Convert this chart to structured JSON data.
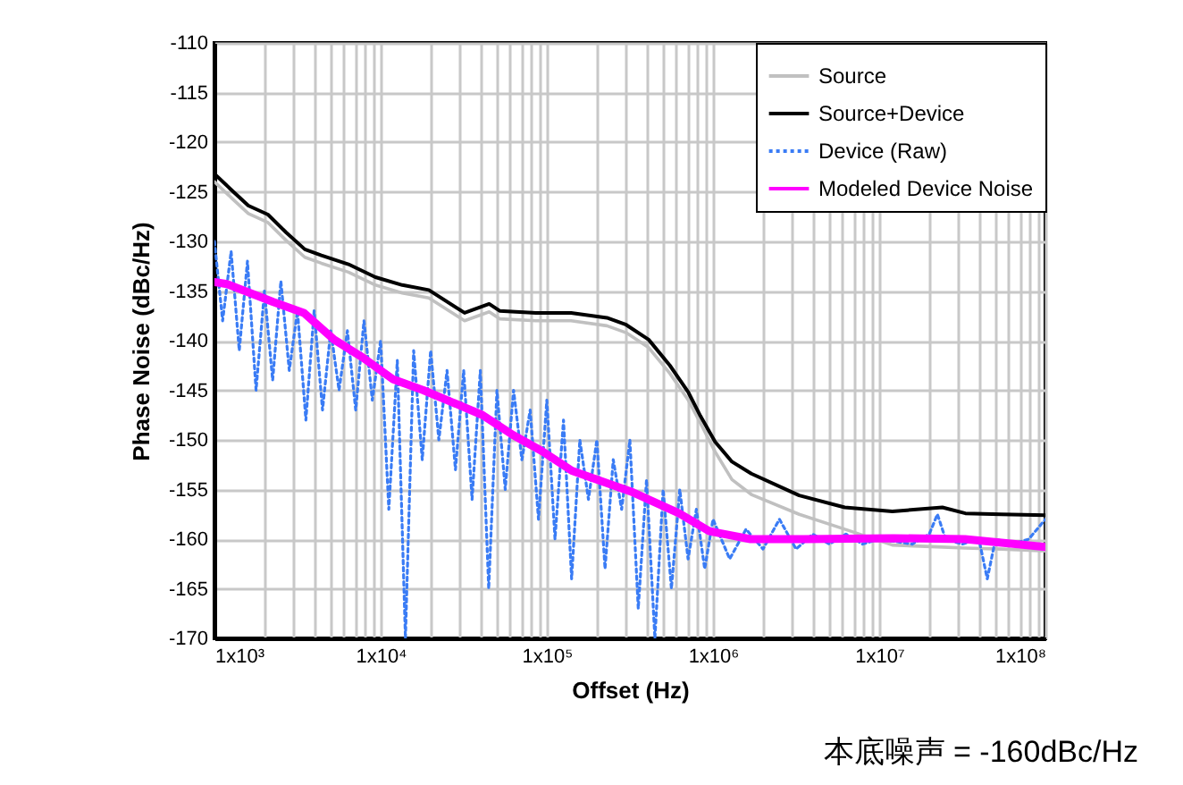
{
  "chart_data": {
    "type": "line",
    "xlabel": "Offset (Hz)",
    "ylabel": "Phase Noise (dBc/Hz)",
    "log": "x",
    "grid": true,
    "legend": "top right",
    "xlim": [
      1000,
      100000000
    ],
    "ylim": [
      -170,
      -110
    ],
    "xticks": [
      {
        "value": 1000,
        "label": "1x10³"
      },
      {
        "value": 2000,
        "label": null
      },
      {
        "value": 3000,
        "label": null
      },
      {
        "value": 4000,
        "label": null
      },
      {
        "value": 5000,
        "label": null
      },
      {
        "value": 6000,
        "label": null
      },
      {
        "value": 7000,
        "label": null
      },
      {
        "value": 8000,
        "label": null
      },
      {
        "value": 9000,
        "label": null
      },
      {
        "value": 10000,
        "label": "1x10⁴"
      },
      {
        "value": 20000,
        "label": null
      },
      {
        "value": 30000,
        "label": null
      },
      {
        "value": 40000,
        "label": null
      },
      {
        "value": 50000,
        "label": null
      },
      {
        "value": 60000,
        "label": null
      },
      {
        "value": 70000,
        "label": null
      },
      {
        "value": 80000,
        "label": null
      },
      {
        "value": 90000,
        "label": null
      },
      {
        "value": 100000,
        "label": "1x10⁵"
      },
      {
        "value": 200000,
        "label": null
      },
      {
        "value": 300000,
        "label": null
      },
      {
        "value": 400000,
        "label": null
      },
      {
        "value": 500000,
        "label": null
      },
      {
        "value": 600000,
        "label": null
      },
      {
        "value": 700000,
        "label": null
      },
      {
        "value": 800000,
        "label": null
      },
      {
        "value": 900000,
        "label": null
      },
      {
        "value": 1000000,
        "label": "1x10⁶"
      },
      {
        "value": 2000000,
        "label": null
      },
      {
        "value": 3000000,
        "label": null
      },
      {
        "value": 4000000,
        "label": null
      },
      {
        "value": 5000000,
        "label": null
      },
      {
        "value": 6000000,
        "label": null
      },
      {
        "value": 7000000,
        "label": null
      },
      {
        "value": 8000000,
        "label": null
      },
      {
        "value": 9000000,
        "label": null
      },
      {
        "value": 10000000,
        "label": "1x10⁷"
      },
      {
        "value": 20000000,
        "label": null
      },
      {
        "value": 30000000,
        "label": null
      },
      {
        "value": 40000000,
        "label": null
      },
      {
        "value": 50000000,
        "label": null
      },
      {
        "value": 60000000,
        "label": null
      },
      {
        "value": 70000000,
        "label": null
      },
      {
        "value": 80000000,
        "label": null
      },
      {
        "value": 90000000,
        "label": null
      },
      {
        "value": 100000000,
        "label": "1x10⁸"
      }
    ],
    "yticks": [
      -110,
      -115,
      -120,
      -125,
      -130,
      -135,
      -140,
      -145,
      -150,
      -155,
      -160,
      -165,
      -170
    ],
    "annotations": [
      "本底噪声 = -160dBc/Hz"
    ],
    "series": [
      {
        "name": "Source",
        "color": "#c0c0c0",
        "x": [
          1000,
          1300,
          1600,
          2100,
          2700,
          3500,
          4400,
          6400,
          9300,
          13500,
          19500,
          32000,
          45000,
          52000,
          86000,
          140000,
          230000,
          300000,
          410000,
          550000,
          710000,
          840000,
          1030000,
          1300000,
          1700000,
          3300000,
          6200000,
          12000000,
          24000000,
          33000000,
          54000000,
          100000000
        ],
        "values": [
          -124,
          -125.8,
          -127.2,
          -128.1,
          -129.9,
          -131.6,
          -132.2,
          -133.1,
          -134.4,
          -135.2,
          -135.7,
          -138,
          -137.1,
          -137.8,
          -138,
          -138,
          -138.5,
          -139.2,
          -140.7,
          -143.3,
          -146,
          -148.3,
          -151.2,
          -154,
          -155.5,
          -157.5,
          -159,
          -160.6,
          -160.8,
          -160.9,
          -161,
          -161.2
        ]
      },
      {
        "name": "Source+Device",
        "color": "#000000",
        "x": [
          1000,
          1300,
          1600,
          2100,
          2700,
          3500,
          4400,
          6400,
          9300,
          13500,
          19500,
          32000,
          45000,
          52000,
          86000,
          140000,
          230000,
          300000,
          410000,
          550000,
          710000,
          840000,
          1030000,
          1300000,
          1700000,
          3300000,
          6200000,
          12000000,
          24000000,
          33000000,
          54000000,
          100000000
        ],
        "values": [
          -123.2,
          -125,
          -126.4,
          -127.3,
          -129.1,
          -130.8,
          -131.4,
          -132.3,
          -133.6,
          -134.4,
          -134.9,
          -137.2,
          -136.3,
          -137,
          -137.2,
          -137.2,
          -137.7,
          -138.4,
          -139.9,
          -142.5,
          -145.2,
          -147.6,
          -150.2,
          -152.2,
          -153.4,
          -155.6,
          -156.8,
          -157.2,
          -156.8,
          -157.4,
          -157.5,
          -157.6
        ]
      },
      {
        "name": "Device (Raw)",
        "color": "#3a7cf5",
        "line_style": "dotted",
        "x": [
          1000,
          1120,
          1260,
          1410,
          1580,
          1780,
          2000,
          2240,
          2510,
          2820,
          3160,
          3550,
          3980,
          4470,
          5010,
          5620,
          6310,
          7080,
          7940,
          8910,
          10000,
          11200,
          12600,
          14100,
          15800,
          17800,
          20000,
          22400,
          25100,
          28200,
          31600,
          35500,
          39800,
          44700,
          50100,
          56200,
          63100,
          70800,
          79400,
          89100,
          100000,
          112000,
          126000,
          141000,
          158000,
          178000,
          200000,
          224000,
          251000,
          282000,
          316000,
          355000,
          398000,
          447000,
          501000,
          562000,
          631000,
          708000,
          794000,
          891000,
          1000000,
          1260000,
          1580000,
          2000000,
          2510000,
          3160000,
          3980000,
          5010000,
          6310000,
          7940000,
          10000000,
          15800000,
          20000000,
          22400000,
          25100000,
          31600000,
          39800000,
          44700000,
          50100000,
          63100000,
          79400000,
          100000000
        ],
        "values": [
          -130,
          -138,
          -131,
          -141,
          -132,
          -145,
          -135,
          -144,
          -134,
          -143,
          -137,
          -148,
          -137,
          -147,
          -139,
          -145,
          -139,
          -147,
          -138,
          -146,
          -140,
          -157,
          -142,
          -170,
          -141,
          -152,
          -141,
          -150,
          -143,
          -153,
          -143,
          -156,
          -143,
          -165,
          -145,
          -155,
          -145,
          -152,
          -147,
          -158,
          -146,
          -160,
          -148,
          -164,
          -150,
          -156,
          -150,
          -163,
          -152,
          -157,
          -150,
          -167,
          -154,
          -170,
          -155,
          -165,
          -155,
          -162,
          -157,
          -163,
          -158,
          -162,
          -159,
          -161,
          -158,
          -161,
          -159.5,
          -160.5,
          -159.5,
          -160.5,
          -160,
          -160.5,
          -159.5,
          -157.5,
          -160,
          -160.5,
          -160,
          -164,
          -160,
          -160.5,
          -160,
          -158
        ]
      },
      {
        "name": "Modeled Device Noise",
        "color": "#ff00ff",
        "x": [
          1000,
          1190,
          2260,
          3450,
          5250,
          7800,
          11900,
          18100,
          26900,
          41000,
          62500,
          92900,
          141500,
          320000,
          625000,
          950000,
          1680000,
          3530000,
          12200000,
          32800000,
          100000000
        ],
        "values": [
          -134.1,
          -134.3,
          -136.1,
          -137.2,
          -139.9,
          -141.7,
          -143.9,
          -145,
          -146.2,
          -147.5,
          -149.5,
          -151.1,
          -153.1,
          -155.2,
          -157.4,
          -159.2,
          -160,
          -160,
          -159.9,
          -160,
          -160.8
        ]
      }
    ]
  }
}
